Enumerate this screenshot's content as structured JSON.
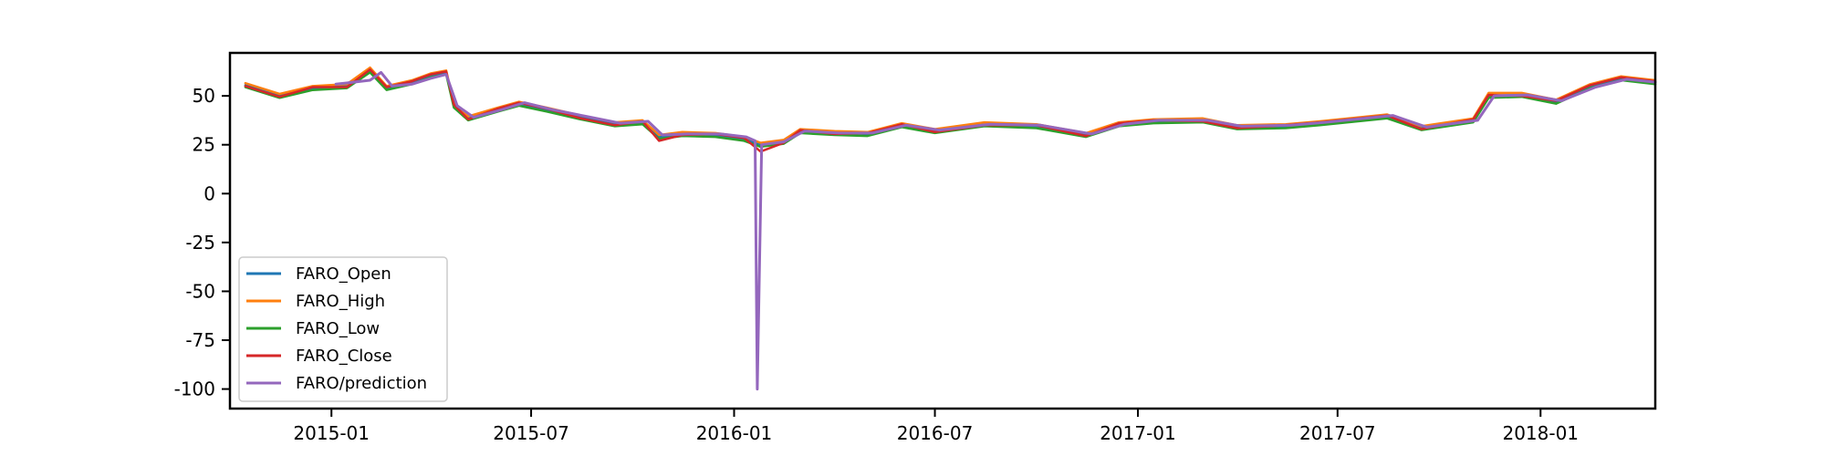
{
  "chart_data": {
    "type": "line",
    "title": "",
    "xlabel": "",
    "ylabel": "",
    "x_range": [
      "2014-10-01",
      "2018-04-15"
    ],
    "ylim": [
      -110,
      72
    ],
    "grid": false,
    "legend_position": "lower-left",
    "x_ticks": [
      {
        "date": "2015-01-01",
        "label": "2015-01"
      },
      {
        "date": "2015-07-01",
        "label": "2015-07"
      },
      {
        "date": "2016-01-01",
        "label": "2016-01"
      },
      {
        "date": "2016-07-01",
        "label": "2016-07"
      },
      {
        "date": "2017-01-01",
        "label": "2017-01"
      },
      {
        "date": "2017-07-01",
        "label": "2017-07"
      },
      {
        "date": "2018-01-01",
        "label": "2018-01"
      }
    ],
    "y_ticks": [
      {
        "value": 50,
        "label": "50"
      },
      {
        "value": 25,
        "label": "25"
      },
      {
        "value": 0,
        "label": "0"
      },
      {
        "value": -25,
        "label": "-25"
      },
      {
        "value": -50,
        "label": "-50"
      },
      {
        "value": -75,
        "label": "-75"
      },
      {
        "value": -100,
        "label": "-100"
      }
    ],
    "series": [
      {
        "name": "FARO_Open",
        "color": "#1f77b4",
        "values": [
          [
            "2014-10-15",
            55.5
          ],
          [
            "2014-11-15",
            50.0
          ],
          [
            "2014-12-15",
            54.0
          ],
          [
            "2015-01-15",
            55.0
          ],
          [
            "2015-02-05",
            63.0
          ],
          [
            "2015-02-20",
            54.0
          ],
          [
            "2015-03-15",
            57.0
          ],
          [
            "2015-04-01",
            60.5
          ],
          [
            "2015-04-15",
            62.0
          ],
          [
            "2015-04-22",
            45.0
          ],
          [
            "2015-05-05",
            38.5
          ],
          [
            "2015-06-01",
            43.0
          ],
          [
            "2015-06-20",
            46.0
          ],
          [
            "2015-07-15",
            43.0
          ],
          [
            "2015-08-15",
            39.0
          ],
          [
            "2015-09-15",
            35.5
          ],
          [
            "2015-10-10",
            36.5
          ],
          [
            "2015-10-25",
            29.0
          ],
          [
            "2015-11-15",
            30.5
          ],
          [
            "2015-12-15",
            30.0
          ],
          [
            "2016-01-10",
            28.0
          ],
          [
            "2016-01-25",
            25.0
          ],
          [
            "2016-02-15",
            26.5
          ],
          [
            "2016-03-01",
            32.0
          ],
          [
            "2016-04-01",
            31.0
          ],
          [
            "2016-05-01",
            30.5
          ],
          [
            "2016-06-01",
            35.0
          ],
          [
            "2016-07-01",
            32.0
          ],
          [
            "2016-08-15",
            35.5
          ],
          [
            "2016-10-01",
            34.5
          ],
          [
            "2016-11-15",
            30.0
          ],
          [
            "2016-12-15",
            35.5
          ],
          [
            "2017-01-15",
            37.0
          ],
          [
            "2017-03-01",
            37.5
          ],
          [
            "2017-04-01",
            34.0
          ],
          [
            "2017-05-15",
            34.5
          ],
          [
            "2017-06-15",
            36.0
          ],
          [
            "2017-08-15",
            39.5
          ],
          [
            "2017-09-15",
            33.5
          ],
          [
            "2017-11-01",
            37.5
          ],
          [
            "2017-11-15",
            50.0
          ],
          [
            "2017-12-15",
            50.5
          ],
          [
            "2018-01-15",
            47.0
          ],
          [
            "2018-02-15",
            55.0
          ],
          [
            "2018-03-15",
            59.0
          ],
          [
            "2018-04-15",
            57.0
          ]
        ]
      },
      {
        "name": "FARO_High",
        "color": "#ff7f0e",
        "values": [
          [
            "2014-10-15",
            56.5
          ],
          [
            "2014-11-15",
            51.0
          ],
          [
            "2014-12-15",
            55.0
          ],
          [
            "2015-01-15",
            56.0
          ],
          [
            "2015-02-05",
            64.5
          ],
          [
            "2015-02-20",
            55.0
          ],
          [
            "2015-03-15",
            58.0
          ],
          [
            "2015-04-01",
            61.5
          ],
          [
            "2015-04-15",
            63.0
          ],
          [
            "2015-04-22",
            46.0
          ],
          [
            "2015-05-05",
            39.5
          ],
          [
            "2015-06-01",
            44.0
          ],
          [
            "2015-06-20",
            47.0
          ],
          [
            "2015-07-15",
            44.0
          ],
          [
            "2015-08-15",
            40.0
          ],
          [
            "2015-09-15",
            36.5
          ],
          [
            "2015-10-10",
            37.5
          ],
          [
            "2015-10-25",
            30.0
          ],
          [
            "2015-11-15",
            31.5
          ],
          [
            "2015-12-15",
            31.0
          ],
          [
            "2016-01-10",
            29.0
          ],
          [
            "2016-01-25",
            26.0
          ],
          [
            "2016-02-15",
            27.5
          ],
          [
            "2016-03-01",
            33.0
          ],
          [
            "2016-04-01",
            32.0
          ],
          [
            "2016-05-01",
            31.5
          ],
          [
            "2016-06-01",
            36.0
          ],
          [
            "2016-07-01",
            33.0
          ],
          [
            "2016-08-15",
            36.5
          ],
          [
            "2016-10-01",
            35.5
          ],
          [
            "2016-11-15",
            31.0
          ],
          [
            "2016-12-15",
            36.5
          ],
          [
            "2017-01-15",
            38.0
          ],
          [
            "2017-03-01",
            38.5
          ],
          [
            "2017-04-01",
            35.0
          ],
          [
            "2017-05-15",
            35.5
          ],
          [
            "2017-06-15",
            37.0
          ],
          [
            "2017-08-15",
            40.5
          ],
          [
            "2017-09-15",
            34.5
          ],
          [
            "2017-11-01",
            38.5
          ],
          [
            "2017-11-15",
            51.5
          ],
          [
            "2017-12-15",
            51.5
          ],
          [
            "2018-01-15",
            48.0
          ],
          [
            "2018-02-15",
            56.0
          ],
          [
            "2018-03-15",
            60.0
          ],
          [
            "2018-04-15",
            58.0
          ]
        ]
      },
      {
        "name": "FARO_Low",
        "color": "#2ca02c",
        "values": [
          [
            "2014-10-15",
            54.5
          ],
          [
            "2014-11-15",
            49.0
          ],
          [
            "2014-12-15",
            53.0
          ],
          [
            "2015-01-15",
            54.0
          ],
          [
            "2015-02-05",
            62.0
          ],
          [
            "2015-02-20",
            53.0
          ],
          [
            "2015-03-15",
            56.0
          ],
          [
            "2015-04-01",
            59.5
          ],
          [
            "2015-04-15",
            61.0
          ],
          [
            "2015-04-22",
            44.0
          ],
          [
            "2015-05-05",
            37.5
          ],
          [
            "2015-06-01",
            42.0
          ],
          [
            "2015-06-20",
            45.0
          ],
          [
            "2015-07-15",
            42.0
          ],
          [
            "2015-08-15",
            38.0
          ],
          [
            "2015-09-15",
            34.5
          ],
          [
            "2015-10-10",
            35.5
          ],
          [
            "2015-10-25",
            28.0
          ],
          [
            "2015-11-15",
            29.5
          ],
          [
            "2015-12-15",
            29.0
          ],
          [
            "2016-01-10",
            27.0
          ],
          [
            "2016-01-25",
            24.0
          ],
          [
            "2016-02-15",
            25.5
          ],
          [
            "2016-03-01",
            31.0
          ],
          [
            "2016-04-01",
            30.0
          ],
          [
            "2016-05-01",
            29.5
          ],
          [
            "2016-06-01",
            34.0
          ],
          [
            "2016-07-01",
            31.0
          ],
          [
            "2016-08-15",
            34.5
          ],
          [
            "2016-10-01",
            33.5
          ],
          [
            "2016-11-15",
            29.0
          ],
          [
            "2016-12-15",
            34.5
          ],
          [
            "2017-01-15",
            36.0
          ],
          [
            "2017-03-01",
            36.5
          ],
          [
            "2017-04-01",
            33.0
          ],
          [
            "2017-05-15",
            33.5
          ],
          [
            "2017-06-15",
            35.0
          ],
          [
            "2017-08-15",
            38.5
          ],
          [
            "2017-09-15",
            32.5
          ],
          [
            "2017-11-01",
            36.5
          ],
          [
            "2017-11-15",
            49.0
          ],
          [
            "2017-12-15",
            49.5
          ],
          [
            "2018-01-15",
            46.0
          ],
          [
            "2018-02-15",
            54.0
          ],
          [
            "2018-03-15",
            58.0
          ],
          [
            "2018-04-15",
            56.0
          ]
        ]
      },
      {
        "name": "FARO_Close",
        "color": "#d62728",
        "values": [
          [
            "2014-10-15",
            55.0
          ],
          [
            "2014-11-15",
            49.5
          ],
          [
            "2014-12-15",
            54.5
          ],
          [
            "2015-01-15",
            54.5
          ],
          [
            "2015-02-05",
            63.5
          ],
          [
            "2015-02-20",
            54.5
          ],
          [
            "2015-03-15",
            57.5
          ],
          [
            "2015-04-01",
            61.0
          ],
          [
            "2015-04-15",
            62.5
          ],
          [
            "2015-04-22",
            45.5
          ],
          [
            "2015-05-05",
            38.0
          ],
          [
            "2015-06-01",
            43.5
          ],
          [
            "2015-06-20",
            46.5
          ],
          [
            "2015-07-15",
            43.5
          ],
          [
            "2015-08-15",
            38.5
          ],
          [
            "2015-09-15",
            35.0
          ],
          [
            "2015-10-10",
            37.0
          ],
          [
            "2015-10-25",
            27.0
          ],
          [
            "2015-11-15",
            30.0
          ],
          [
            "2015-12-15",
            30.5
          ],
          [
            "2016-01-10",
            28.5
          ],
          [
            "2016-01-25",
            21.5
          ],
          [
            "2016-02-15",
            26.0
          ],
          [
            "2016-03-01",
            32.5
          ],
          [
            "2016-04-01",
            30.5
          ],
          [
            "2016-05-01",
            31.0
          ],
          [
            "2016-06-01",
            35.5
          ],
          [
            "2016-07-01",
            31.5
          ],
          [
            "2016-08-15",
            35.0
          ],
          [
            "2016-10-01",
            35.0
          ],
          [
            "2016-11-15",
            29.5
          ],
          [
            "2016-12-15",
            36.0
          ],
          [
            "2017-01-15",
            37.5
          ],
          [
            "2017-03-01",
            37.0
          ],
          [
            "2017-04-01",
            33.5
          ],
          [
            "2017-05-15",
            35.0
          ],
          [
            "2017-06-15",
            36.5
          ],
          [
            "2017-08-15",
            40.0
          ],
          [
            "2017-09-15",
            33.0
          ],
          [
            "2017-11-01",
            38.0
          ],
          [
            "2017-11-15",
            50.5
          ],
          [
            "2017-12-15",
            50.0
          ],
          [
            "2018-01-15",
            47.5
          ],
          [
            "2018-02-15",
            55.5
          ],
          [
            "2018-03-15",
            59.5
          ],
          [
            "2018-04-15",
            57.5
          ]
        ]
      },
      {
        "name": "FARO/prediction",
        "color": "#9467bd",
        "values": [
          [
            "2015-01-05",
            56.0
          ],
          [
            "2015-02-05",
            58.0
          ],
          [
            "2015-02-15",
            62.0
          ],
          [
            "2015-02-25",
            55.0
          ],
          [
            "2015-03-15",
            56.0
          ],
          [
            "2015-04-01",
            59.0
          ],
          [
            "2015-04-15",
            61.0
          ],
          [
            "2015-04-25",
            45.0
          ],
          [
            "2015-05-10",
            39.0
          ],
          [
            "2015-06-05",
            43.0
          ],
          [
            "2015-06-25",
            46.5
          ],
          [
            "2015-07-20",
            43.0
          ],
          [
            "2015-08-20",
            39.5
          ],
          [
            "2015-09-20",
            36.0
          ],
          [
            "2015-10-15",
            37.0
          ],
          [
            "2015-10-28",
            30.0
          ],
          [
            "2015-11-20",
            30.5
          ],
          [
            "2015-12-20",
            30.5
          ],
          [
            "2016-01-12",
            29.0
          ],
          [
            "2016-01-20",
            27.0
          ],
          [
            "2016-01-22",
            -100.0
          ],
          [
            "2016-01-26",
            25.0
          ],
          [
            "2016-02-15",
            26.5
          ],
          [
            "2016-03-05",
            32.0
          ],
          [
            "2016-04-05",
            31.0
          ],
          [
            "2016-05-05",
            31.0
          ],
          [
            "2016-06-05",
            35.0
          ],
          [
            "2016-07-05",
            32.5
          ],
          [
            "2016-08-20",
            35.5
          ],
          [
            "2016-10-05",
            35.0
          ],
          [
            "2016-11-20",
            30.5
          ],
          [
            "2016-12-20",
            35.5
          ],
          [
            "2017-01-20",
            37.5
          ],
          [
            "2017-03-05",
            37.5
          ],
          [
            "2017-04-05",
            34.5
          ],
          [
            "2017-05-20",
            35.0
          ],
          [
            "2017-06-20",
            36.5
          ],
          [
            "2017-08-20",
            40.0
          ],
          [
            "2017-09-20",
            34.0
          ],
          [
            "2017-11-05",
            37.5
          ],
          [
            "2017-11-20",
            50.0
          ],
          [
            "2017-12-20",
            50.5
          ],
          [
            "2018-01-20",
            47.5
          ],
          [
            "2018-02-20",
            54.5
          ],
          [
            "2018-03-20",
            58.5
          ],
          [
            "2018-04-15",
            57.0
          ]
        ]
      }
    ]
  }
}
